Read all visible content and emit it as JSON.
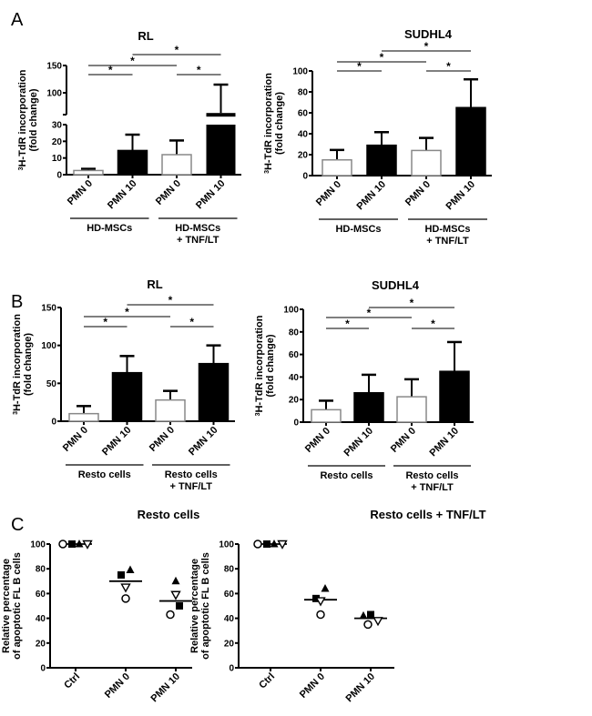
{
  "panels": [
    "A",
    "B",
    "C"
  ],
  "colors": {
    "bar_pmn0": "#ffffff",
    "bar_pmn10": "#000000",
    "bar_pmn0_stroke": "#888888",
    "axis": "#000000"
  },
  "chart_data": [
    {
      "type": "bar",
      "panel": "A",
      "title": "RL",
      "ylabel_sup": "3",
      "ylabel": "H-TdR incorporation",
      "ylabel2": "(fold change)",
      "categories": [
        "PMN 0",
        "PMN 10",
        "PMN 0",
        "PMN 10"
      ],
      "groups": [
        {
          "line1": "HD-MSCs",
          "line2": ""
        },
        {
          "line1": "HD-MSCs",
          "line2": "+ TNF/LT"
        }
      ],
      "values": [
        2.5,
        14.5,
        12,
        63
      ],
      "error_upper": [
        3.5,
        24,
        20.5,
        115
      ],
      "axis_break": [
        30,
        60
      ],
      "ylim": [
        0,
        150
      ],
      "yticks": [
        0,
        10,
        20,
        30,
        100,
        150
      ],
      "significance": [
        {
          "pair": [
            0,
            1
          ],
          "label": "*"
        },
        {
          "pair": [
            2,
            3
          ],
          "label": "*"
        },
        {
          "pair": [
            0,
            2
          ],
          "label": "*"
        },
        {
          "pair": [
            1,
            3
          ],
          "label": "*"
        }
      ]
    },
    {
      "type": "bar",
      "panel": "A",
      "title": "SUDHL4",
      "ylabel_sup": "3",
      "ylabel": "H-TdR incorporation",
      "ylabel2": "(fold change)",
      "categories": [
        "PMN 0",
        "PMN 10",
        "PMN 0",
        "PMN 10"
      ],
      "groups": [
        {
          "line1": "HD-MSCs",
          "line2": ""
        },
        {
          "line1": "HD-MSCs",
          "line2": "+ TNF/LT"
        }
      ],
      "values": [
        15,
        29,
        24,
        65
      ],
      "error_upper": [
        24.5,
        41.5,
        36,
        92
      ],
      "ylim": [
        0,
        100
      ],
      "yticks": [
        0,
        20,
        40,
        60,
        80,
        100
      ],
      "significance": [
        {
          "pair": [
            0,
            1
          ],
          "label": "*"
        },
        {
          "pair": [
            2,
            3
          ],
          "label": "*"
        },
        {
          "pair": [
            0,
            2
          ],
          "label": "*"
        },
        {
          "pair": [
            1,
            3
          ],
          "label": "*"
        }
      ]
    },
    {
      "type": "bar",
      "panel": "B",
      "title": "RL",
      "ylabel_sup": "3",
      "ylabel": "H-TdR incorporation",
      "ylabel2": "(fold change)",
      "categories": [
        "PMN 0",
        "PMN 10",
        "PMN 0",
        "PMN 10"
      ],
      "groups": [
        {
          "line1": "Resto cells",
          "line2": ""
        },
        {
          "line1": "Resto cells",
          "line2": "+ TNF/LT"
        }
      ],
      "values": [
        10,
        64,
        28,
        76
      ],
      "error_upper": [
        20,
        86,
        40,
        100
      ],
      "ylim": [
        0,
        150
      ],
      "yticks": [
        0,
        50,
        100,
        150
      ],
      "significance": [
        {
          "pair": [
            0,
            1
          ],
          "label": "*"
        },
        {
          "pair": [
            2,
            3
          ],
          "label": "*"
        },
        {
          "pair": [
            0,
            2
          ],
          "label": "*"
        },
        {
          "pair": [
            1,
            3
          ],
          "label": "*"
        }
      ]
    },
    {
      "type": "bar",
      "panel": "B",
      "title": "SUDHL4",
      "ylabel_sup": "3",
      "ylabel": "H-TdR incorporation",
      "ylabel2": "(fold change)",
      "categories": [
        "PMN 0",
        "PMN 10",
        "PMN 0",
        "PMN 10"
      ],
      "groups": [
        {
          "line1": "Resto cells",
          "line2": ""
        },
        {
          "line1": "Resto cells",
          "line2": "+ TNF/LT"
        }
      ],
      "values": [
        11,
        26,
        22.5,
        45
      ],
      "error_upper": [
        19,
        42,
        38,
        71
      ],
      "ylim": [
        0,
        100
      ],
      "yticks": [
        0,
        20,
        40,
        60,
        80,
        100
      ],
      "significance": [
        {
          "pair": [
            0,
            1
          ],
          "label": "*"
        },
        {
          "pair": [
            2,
            3
          ],
          "label": "*"
        },
        {
          "pair": [
            0,
            2
          ],
          "label": "*"
        },
        {
          "pair": [
            1,
            3
          ],
          "label": "*"
        }
      ]
    },
    {
      "type": "scatter",
      "panel": "C",
      "title": "Resto cells",
      "ylabel": "Relative percentage",
      "ylabel2": "of apoptotic FL B cells",
      "categories": [
        "Ctrl",
        "PMN 0",
        "PMN 10"
      ],
      "ylim": [
        0,
        100
      ],
      "yticks": [
        0,
        20,
        40,
        60,
        80,
        100
      ],
      "series": [
        {
          "marker": "open-circle",
          "values": [
            100,
            56,
            43
          ]
        },
        {
          "marker": "filled-square",
          "values": [
            100,
            75,
            50
          ]
        },
        {
          "marker": "filled-triangle",
          "values": [
            100,
            79,
            70
          ]
        },
        {
          "marker": "open-inverted-triangle",
          "values": [
            100,
            65,
            59
          ]
        }
      ],
      "means": [
        100,
        70,
        54
      ]
    },
    {
      "type": "scatter",
      "panel": "C",
      "title": "Resto cells + TNF/LT",
      "ylabel": "Relative percentage",
      "ylabel2": "of apoptotic FL B cells",
      "categories": [
        "Ctrl",
        "PMN 0",
        "PMN 10"
      ],
      "ylim": [
        0,
        100
      ],
      "yticks": [
        0,
        20,
        40,
        60,
        80,
        100
      ],
      "series": [
        {
          "marker": "open-circle",
          "values": [
            100,
            43,
            35
          ]
        },
        {
          "marker": "filled-square",
          "values": [
            100,
            56,
            43
          ]
        },
        {
          "marker": "filled-triangle",
          "values": [
            100,
            64,
            42
          ]
        },
        {
          "marker": "open-inverted-triangle",
          "values": [
            100,
            54,
            38
          ]
        }
      ],
      "means": [
        100,
        55,
        40
      ]
    }
  ]
}
